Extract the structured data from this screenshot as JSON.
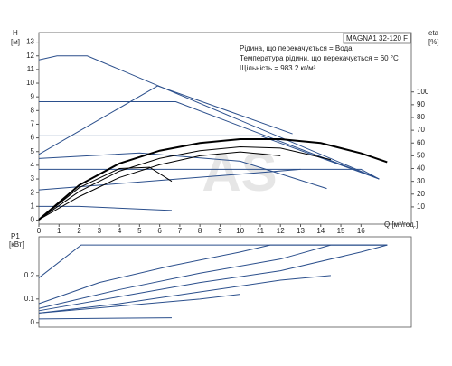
{
  "chart_data": [
    {
      "type": "line",
      "model": "MAGNA1 32-120 F",
      "annotations": [
        "Рідина, що перекачується = Вода",
        "Температура рідини, що перекачується = 60 °C",
        "Щільність = 983.2 кг/м³"
      ],
      "watermark": "AS",
      "ylabel": "H",
      "yunit": "[м]",
      "y2label": "eta",
      "y2unit": "[%]",
      "xlabel": "Q [м³/год.]",
      "xlim": [
        0,
        18.5
      ],
      "xticks": [
        0,
        1,
        2,
        3,
        4,
        5,
        6,
        7,
        8,
        9,
        10,
        11,
        12,
        13,
        14,
        15,
        16
      ],
      "ylim": [
        -0.3,
        13.7
      ],
      "yticks": [
        0,
        1,
        2,
        3,
        4,
        5,
        6,
        7,
        8,
        9,
        10,
        11,
        12,
        13
      ],
      "y2lim": [
        -3.5,
        146.5
      ],
      "y2ticks": [
        10,
        20,
        30,
        40,
        50,
        60,
        70,
        80,
        90,
        100
      ],
      "series": [
        {
          "color": "#2b4f8c",
          "x": [
            0,
            0.9,
            2.4,
            16.9
          ],
          "values": [
            11.7,
            12,
            12,
            3.0
          ]
        },
        {
          "color": "#2b4f8c",
          "x": [
            0,
            6.8,
            16.9
          ],
          "values": [
            8.65,
            8.65,
            3.0
          ]
        },
        {
          "color": "#2b4f8c",
          "x": [
            0,
            5.9,
            12.6
          ],
          "values": [
            4.8,
            9.8,
            6.3
          ]
        },
        {
          "color": "#2b4f8c",
          "x": [
            0,
            11,
            16.9
          ],
          "values": [
            6.15,
            6.15,
            3.0
          ]
        },
        {
          "color": "#2b4f8c",
          "x": [
            0,
            5,
            10,
            14.3
          ],
          "values": [
            4.5,
            4.9,
            4.3,
            2.3
          ]
        },
        {
          "color": "#2b4f8c",
          "x": [
            0,
            16,
            16.9
          ],
          "values": [
            3.7,
            3.7,
            3.0
          ]
        },
        {
          "color": "#2b4f8c",
          "x": [
            0,
            13
          ],
          "values": [
            2.2,
            3.7
          ]
        },
        {
          "color": "#2b4f8c",
          "x": [
            0,
            2,
            6.6
          ],
          "values": [
            1.0,
            1.0,
            0.7
          ]
        },
        {
          "color": "#000000",
          "axis": "y2",
          "width": 2,
          "x": [
            0,
            2,
            4,
            6,
            8,
            10,
            12,
            14,
            16,
            17.3
          ],
          "values": [
            0,
            27,
            44,
            54,
            60,
            63,
            63,
            60,
            52,
            45
          ]
        },
        {
          "color": "#000000",
          "axis": "y2",
          "x": [
            0,
            2,
            4,
            6,
            8,
            10,
            12,
            14.5
          ],
          "values": [
            0,
            22,
            38,
            48,
            54,
            57,
            56,
            47
          ]
        },
        {
          "color": "#000000",
          "axis": "y2",
          "x": [
            0,
            2,
            4,
            6,
            8,
            10,
            12
          ],
          "values": [
            0,
            18,
            33,
            43,
            50,
            53,
            50
          ]
        },
        {
          "color": "#000000",
          "axis": "y2",
          "x": [
            0,
            2,
            4,
            5.5,
            6.6
          ],
          "values": [
            0,
            25,
            40,
            41,
            30
          ]
        }
      ]
    },
    {
      "type": "line",
      "ylabel": "P1",
      "yunit": "[кВт]",
      "xlim": [
        0,
        18.5
      ],
      "ylim": [
        -0.02,
        0.365
      ],
      "yticks": [
        0,
        0.1,
        0.2
      ],
      "series": [
        {
          "color": "#2b4f8c",
          "x": [
            0,
            2.1,
            17.3
          ],
          "values": [
            0.19,
            0.33,
            0.33
          ]
        },
        {
          "color": "#2b4f8c",
          "x": [
            0,
            3,
            6.5,
            10,
            11.5,
            17.3
          ],
          "values": [
            0.08,
            0.17,
            0.24,
            0.3,
            0.33,
            0.33
          ]
        },
        {
          "color": "#2b4f8c",
          "x": [
            0,
            4,
            8,
            12,
            14.5,
            17.3
          ],
          "values": [
            0.06,
            0.14,
            0.21,
            0.27,
            0.33,
            0.33
          ]
        },
        {
          "color": "#2b4f8c",
          "x": [
            0,
            4,
            8,
            12,
            16,
            17.3
          ],
          "values": [
            0.05,
            0.11,
            0.17,
            0.22,
            0.3,
            0.33
          ]
        },
        {
          "color": "#2b4f8c",
          "x": [
            0,
            4,
            8,
            12,
            14.5
          ],
          "values": [
            0.04,
            0.08,
            0.13,
            0.18,
            0.2
          ]
        },
        {
          "color": "#2b4f8c",
          "x": [
            0,
            4,
            8,
            10
          ],
          "values": [
            0.04,
            0.07,
            0.1,
            0.12
          ]
        },
        {
          "color": "#2b4f8c",
          "x": [
            0,
            6.6
          ],
          "values": [
            0.015,
            0.02
          ]
        }
      ]
    }
  ]
}
